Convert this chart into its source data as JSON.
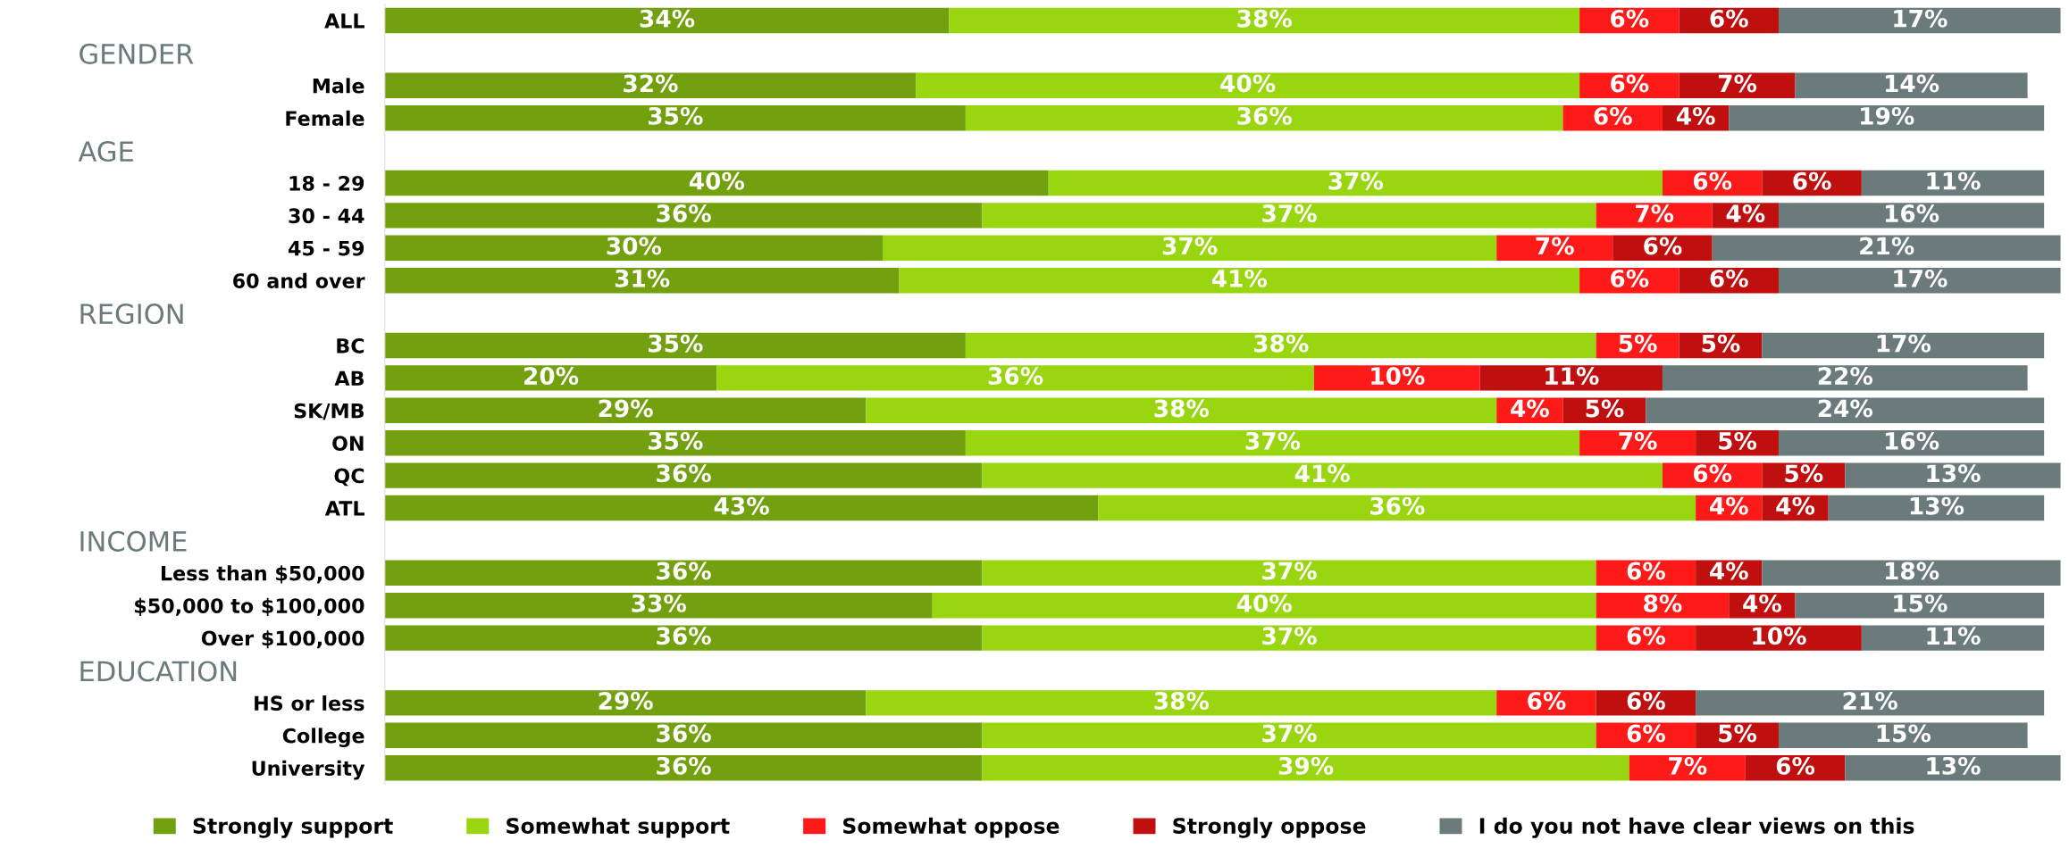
{
  "chart_data": {
    "type": "bar",
    "orientation": "horizontal",
    "stacked": true,
    "legend": "bottom",
    "grid": false,
    "categories": [
      "ALL",
      null,
      "Male",
      "Female",
      null,
      "18 - 29",
      "30 - 44",
      "45 - 59",
      "60 and over",
      null,
      "BC",
      "AB",
      "SK/MB",
      "ON",
      "QC",
      "ATL",
      null,
      "Less than $50,000",
      "$50,000 to $100,000",
      "Over $100,000",
      null,
      "HS or less",
      "College",
      "University"
    ],
    "annotations": [
      "GENDER",
      "AGE",
      "REGION",
      "INCOME",
      "EDUCATION"
    ],
    "series": [
      {
        "name": "Strongly support",
        "color": "#72a00f",
        "values": [
          34,
          null,
          32,
          35,
          null,
          40,
          36,
          30,
          31,
          null,
          35,
          20,
          29,
          35,
          36,
          43,
          null,
          36,
          33,
          36,
          null,
          29,
          36,
          36
        ],
        "value_labels": [
          "34%",
          null,
          "32%",
          "35%",
          null,
          "40%",
          "36%",
          "30%",
          "31%",
          null,
          "35%",
          "20%",
          "29%",
          "35%",
          "36%",
          "43%",
          null,
          "36%",
          "33%",
          "36%",
          null,
          "29%",
          "36%",
          "36%"
        ]
      },
      {
        "name": "Somewhat support",
        "color": "#99d60f",
        "values": [
          38,
          null,
          40,
          36,
          null,
          37,
          37,
          37,
          41,
          null,
          38,
          36,
          38,
          37,
          41,
          36,
          null,
          37,
          40,
          37,
          null,
          38,
          37,
          39
        ],
        "value_labels": [
          "38%",
          null,
          "40%",
          "36%",
          null,
          "37%",
          "37%",
          "37%",
          "41%",
          null,
          "38%",
          "36%",
          "38%",
          "37%",
          "41%",
          "36%",
          null,
          "37%",
          "40%",
          "37%",
          null,
          "38%",
          "37%",
          "39%"
        ]
      },
      {
        "name": "Somewhat oppose",
        "color": "#ff1a1a",
        "values": [
          6,
          null,
          6,
          6,
          null,
          6,
          7,
          7,
          6,
          null,
          5,
          10,
          4,
          7,
          6,
          4,
          null,
          6,
          8,
          6,
          null,
          6,
          6,
          7
        ],
        "value_labels": [
          "6%",
          null,
          "6%",
          "6%",
          null,
          "6%",
          "7%",
          "7%",
          "6%",
          null,
          "5%",
          "10%",
          "4%",
          "7%",
          "6%",
          "4%",
          null,
          "6%",
          "8%",
          "6%",
          null,
          "6%",
          "6%",
          "7%"
        ]
      },
      {
        "name": "Strongly oppose",
        "color": "#c00f0f",
        "values": [
          6,
          null,
          7,
          4,
          null,
          6,
          4,
          6,
          6,
          null,
          5,
          11,
          5,
          5,
          5,
          4,
          null,
          4,
          4,
          10,
          null,
          6,
          5,
          6
        ],
        "value_labels": [
          "6%",
          null,
          "7%",
          "4%",
          null,
          "6%",
          "4%",
          "6%",
          "6%",
          null,
          "5%",
          "11%",
          "5%",
          "5%",
          "5%",
          "4%",
          null,
          "4%",
          "4%",
          "10%",
          null,
          "6%",
          "5%",
          "6%"
        ]
      },
      {
        "name": "I do you not have clear views on this",
        "color": "#6b7b7b",
        "values": [
          17,
          null,
          14,
          19,
          null,
          11,
          16,
          21,
          17,
          null,
          17,
          22,
          24,
          16,
          13,
          13,
          null,
          18,
          15,
          11,
          null,
          21,
          15,
          13
        ],
        "value_labels": [
          "17%",
          null,
          "14%",
          "19%",
          null,
          "11%",
          "16%",
          "21%",
          "17%",
          null,
          "17%",
          "22%",
          "24%",
          "16%",
          "13%",
          "13%",
          null,
          "18%",
          "15%",
          "11%",
          null,
          "21%",
          "15%",
          "13%"
        ]
      }
    ]
  }
}
